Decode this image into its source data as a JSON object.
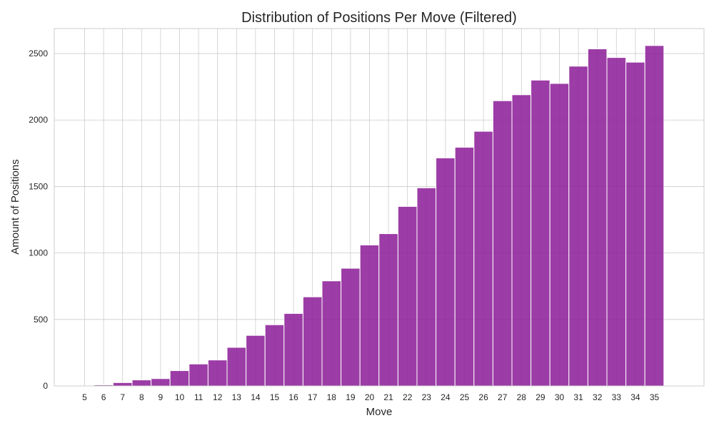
{
  "chart_data": {
    "type": "bar",
    "title": "Distribution of Positions Per Move (Filtered)",
    "xlabel": "Move",
    "ylabel": "Amount of Positions",
    "categories": [
      "5",
      "6",
      "7",
      "8",
      "9",
      "10",
      "11",
      "12",
      "13",
      "14",
      "15",
      "16",
      "17",
      "18",
      "19",
      "20",
      "21",
      "22",
      "23",
      "24",
      "25",
      "26",
      "27",
      "28",
      "29",
      "30",
      "31",
      "32",
      "33",
      "34",
      "35"
    ],
    "values": [
      0,
      8,
      25,
      45,
      55,
      115,
      165,
      195,
      290,
      380,
      460,
      545,
      670,
      790,
      885,
      1060,
      1145,
      1350,
      1490,
      1715,
      1795,
      1915,
      2145,
      2190,
      2300,
      2275,
      2405,
      2535,
      2470,
      2435,
      2560
    ],
    "yticks": [
      0,
      500,
      1000,
      1500,
      2000,
      2500
    ],
    "ylim": [
      0,
      2688
    ],
    "grid": true,
    "colors": {
      "bar": "#8b1a96",
      "bar_edge": "#ffffff"
    }
  }
}
